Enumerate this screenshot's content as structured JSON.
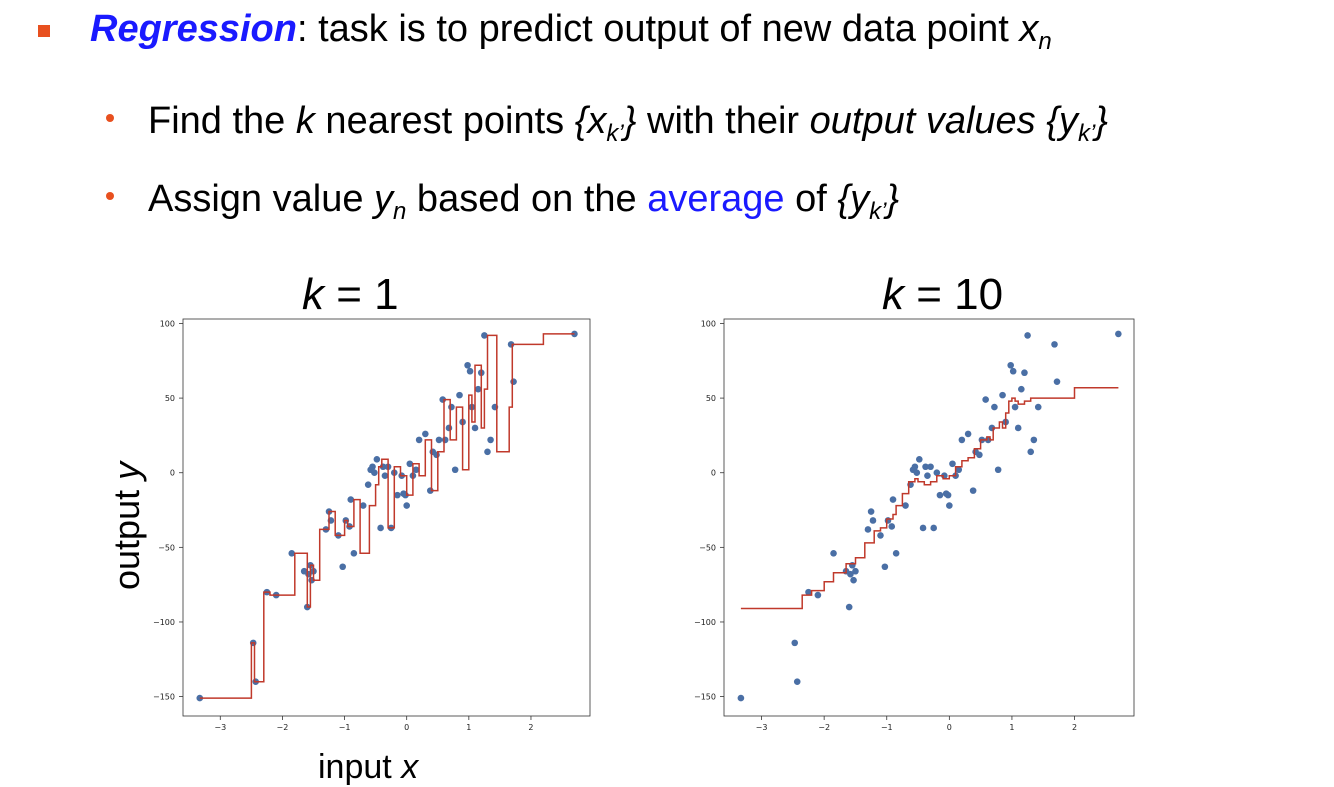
{
  "bullet1": {
    "keyword": "Regression",
    "text": ": task is to predict output of new data point ",
    "var": "x",
    "sub": "n"
  },
  "sub1": {
    "a": "Find the ",
    "k": "k",
    "b": " nearest points ",
    "pts_open": "{x",
    "pts_sub": "k’",
    "pts_close": "}",
    "c": " with their ",
    "d": "output values",
    "y_open": " {y",
    "y_sub": "k’",
    "y_close": "}"
  },
  "sub2": {
    "a": "Assign value ",
    "yvar": "y",
    "ysub": "n",
    "b": " based on the ",
    "avg": "average",
    "c": " of ",
    "y_open": "{y",
    "y_sub": "k’",
    "y_close": "}"
  },
  "plot1_title": {
    "k": "k",
    "rest": " = 1"
  },
  "plot2_title": {
    "k": "k",
    "rest": " = 10"
  },
  "ylabel": {
    "a": "output ",
    "var": "y"
  },
  "xlabel": {
    "a": "input ",
    "var": "x"
  },
  "colors": {
    "accent": "#e8501f",
    "keyword": "#1a1aff",
    "points": "#4a6fa5",
    "line": "#c0392b"
  },
  "chart_data": [
    {
      "type": "scatter",
      "title": "k = 1",
      "xlim": [
        -3.6,
        2.95
      ],
      "ylim": [
        -163,
        103
      ],
      "xticks": [
        -3,
        -2,
        -1,
        0,
        1,
        2
      ],
      "yticks": [
        -150,
        -100,
        -50,
        0,
        50,
        100
      ],
      "points": {
        "x": [
          -3.33,
          -2.47,
          -2.43,
          -2.25,
          -2.1,
          -1.85,
          -1.65,
          -1.6,
          -1.58,
          -1.55,
          -1.53,
          -1.5,
          -1.3,
          -1.25,
          -1.22,
          -1.1,
          -1.03,
          -0.98,
          -0.92,
          -0.9,
          -0.85,
          -0.7,
          -0.62,
          -0.58,
          -0.55,
          -0.52,
          -0.48,
          -0.42,
          -0.38,
          -0.35,
          -0.3,
          -0.25,
          -0.2,
          -0.15,
          -0.08,
          -0.05,
          -0.02,
          0.0,
          0.05,
          0.1,
          0.15,
          0.2,
          0.3,
          0.38,
          0.42,
          0.48,
          0.52,
          0.58,
          0.62,
          0.68,
          0.72,
          0.78,
          0.85,
          0.9,
          0.98,
          1.02,
          1.05,
          1.1,
          1.15,
          1.2,
          1.25,
          1.3,
          1.35,
          1.42,
          1.68,
          1.72,
          2.7
        ],
        "y": [
          -151,
          -114,
          -140,
          -80,
          -82,
          -54,
          -66,
          -90,
          -68,
          -62,
          -72,
          -66,
          -38,
          -26,
          -32,
          -42,
          -63,
          -32,
          -36,
          -18,
          -54,
          -22,
          -8,
          2,
          4,
          0,
          9,
          -37,
          4,
          -2,
          4,
          -37,
          0,
          -15,
          -2,
          -14,
          -15,
          -22,
          6,
          -2,
          2,
          22,
          26,
          -12,
          14,
          12,
          22,
          49,
          22,
          30,
          44,
          2,
          52,
          34,
          72,
          68,
          44,
          30,
          56,
          67,
          92,
          14,
          22,
          44,
          86,
          61,
          93
        ]
      },
      "fit": {
        "x": [
          -3.33,
          -3.0,
          -2.5,
          -2.45,
          -2.4,
          -2.3,
          -2.2,
          -2.0,
          -1.8,
          -1.6,
          -1.55,
          -1.5,
          -1.4,
          -1.25,
          -1.15,
          -1.0,
          -0.95,
          -0.85,
          -0.75,
          -0.6,
          -0.5,
          -0.45,
          -0.4,
          -0.3,
          -0.2,
          -0.1,
          0.0,
          0.1,
          0.2,
          0.3,
          0.4,
          0.5,
          0.6,
          0.7,
          0.8,
          0.9,
          1.0,
          1.05,
          1.1,
          1.2,
          1.25,
          1.3,
          1.45,
          1.65,
          1.7,
          1.9,
          2.2,
          2.7
        ],
        "y": [
          -151,
          -151,
          -114,
          -140,
          -140,
          -80,
          -82,
          -82,
          -54,
          -90,
          -62,
          -72,
          -38,
          -26,
          -42,
          -32,
          -36,
          -18,
          -54,
          -22,
          -8,
          4,
          9,
          -37,
          4,
          -2,
          -15,
          6,
          -2,
          22,
          -12,
          14,
          49,
          22,
          44,
          2,
          52,
          34,
          72,
          30,
          56,
          92,
          14,
          44,
          86,
          86,
          93,
          93
        ]
      }
    },
    {
      "type": "scatter",
      "title": "k = 10",
      "xlim": [
        -3.6,
        2.95
      ],
      "ylim": [
        -163,
        103
      ],
      "xticks": [
        -3,
        -2,
        -1,
        0,
        1,
        2
      ],
      "yticks": [
        -150,
        -100,
        -50,
        0,
        50,
        100
      ],
      "points": {
        "x": [
          -3.33,
          -2.47,
          -2.43,
          -2.25,
          -2.1,
          -1.85,
          -1.65,
          -1.6,
          -1.58,
          -1.55,
          -1.53,
          -1.5,
          -1.3,
          -1.25,
          -1.22,
          -1.1,
          -1.03,
          -0.98,
          -0.92,
          -0.9,
          -0.85,
          -0.7,
          -0.62,
          -0.58,
          -0.55,
          -0.52,
          -0.48,
          -0.42,
          -0.38,
          -0.35,
          -0.3,
          -0.25,
          -0.2,
          -0.15,
          -0.08,
          -0.05,
          -0.02,
          0.0,
          0.05,
          0.1,
          0.15,
          0.2,
          0.3,
          0.38,
          0.42,
          0.48,
          0.52,
          0.58,
          0.62,
          0.68,
          0.72,
          0.78,
          0.85,
          0.9,
          0.98,
          1.02,
          1.05,
          1.1,
          1.15,
          1.2,
          1.25,
          1.3,
          1.35,
          1.42,
          1.68,
          1.72,
          2.7
        ],
        "y": [
          -151,
          -114,
          -140,
          -80,
          -82,
          -54,
          -66,
          -90,
          -68,
          -62,
          -72,
          -66,
          -38,
          -26,
          -32,
          -42,
          -63,
          -32,
          -36,
          -18,
          -54,
          -22,
          -8,
          2,
          4,
          0,
          9,
          -37,
          4,
          -2,
          4,
          -37,
          0,
          -15,
          -2,
          -14,
          -15,
          -22,
          6,
          -2,
          2,
          22,
          26,
          -12,
          14,
          12,
          22,
          49,
          22,
          30,
          44,
          2,
          52,
          34,
          72,
          68,
          44,
          30,
          56,
          67,
          92,
          14,
          22,
          44,
          86,
          61,
          93
        ]
      },
      "fit": {
        "x": [
          -3.33,
          -2.7,
          -2.65,
          -2.4,
          -2.35,
          -2.25,
          -2.2,
          -2.05,
          -2.0,
          -1.9,
          -1.85,
          -1.7,
          -1.65,
          -1.55,
          -1.5,
          -1.4,
          -1.35,
          -1.25,
          -1.2,
          -1.1,
          -1.0,
          -0.9,
          -0.85,
          -0.75,
          -0.65,
          -0.55,
          -0.5,
          -0.4,
          -0.3,
          -0.2,
          -0.1,
          0.0,
          0.1,
          0.15,
          0.2,
          0.3,
          0.4,
          0.5,
          0.6,
          0.65,
          0.7,
          0.8,
          0.85,
          0.9,
          0.95,
          1.0,
          1.05,
          1.1,
          1.2,
          1.3,
          1.45,
          1.6,
          1.65,
          1.9,
          2.0,
          2.7
        ],
        "y": [
          -91,
          -91,
          -91,
          -91,
          -82,
          -82,
          -79,
          -79,
          -73,
          -73,
          -67,
          -67,
          -61,
          -61,
          -57,
          -57,
          -47,
          -47,
          -39,
          -37,
          -31,
          -28,
          -22,
          -14,
          -6,
          -4,
          -6,
          -8,
          -6,
          -2,
          -4,
          -2,
          4,
          4,
          8,
          10,
          16,
          22,
          24,
          22,
          30,
          34,
          30,
          40,
          48,
          50,
          48,
          46,
          48,
          50,
          50,
          50,
          50,
          50,
          57,
          57
        ]
      }
    }
  ]
}
